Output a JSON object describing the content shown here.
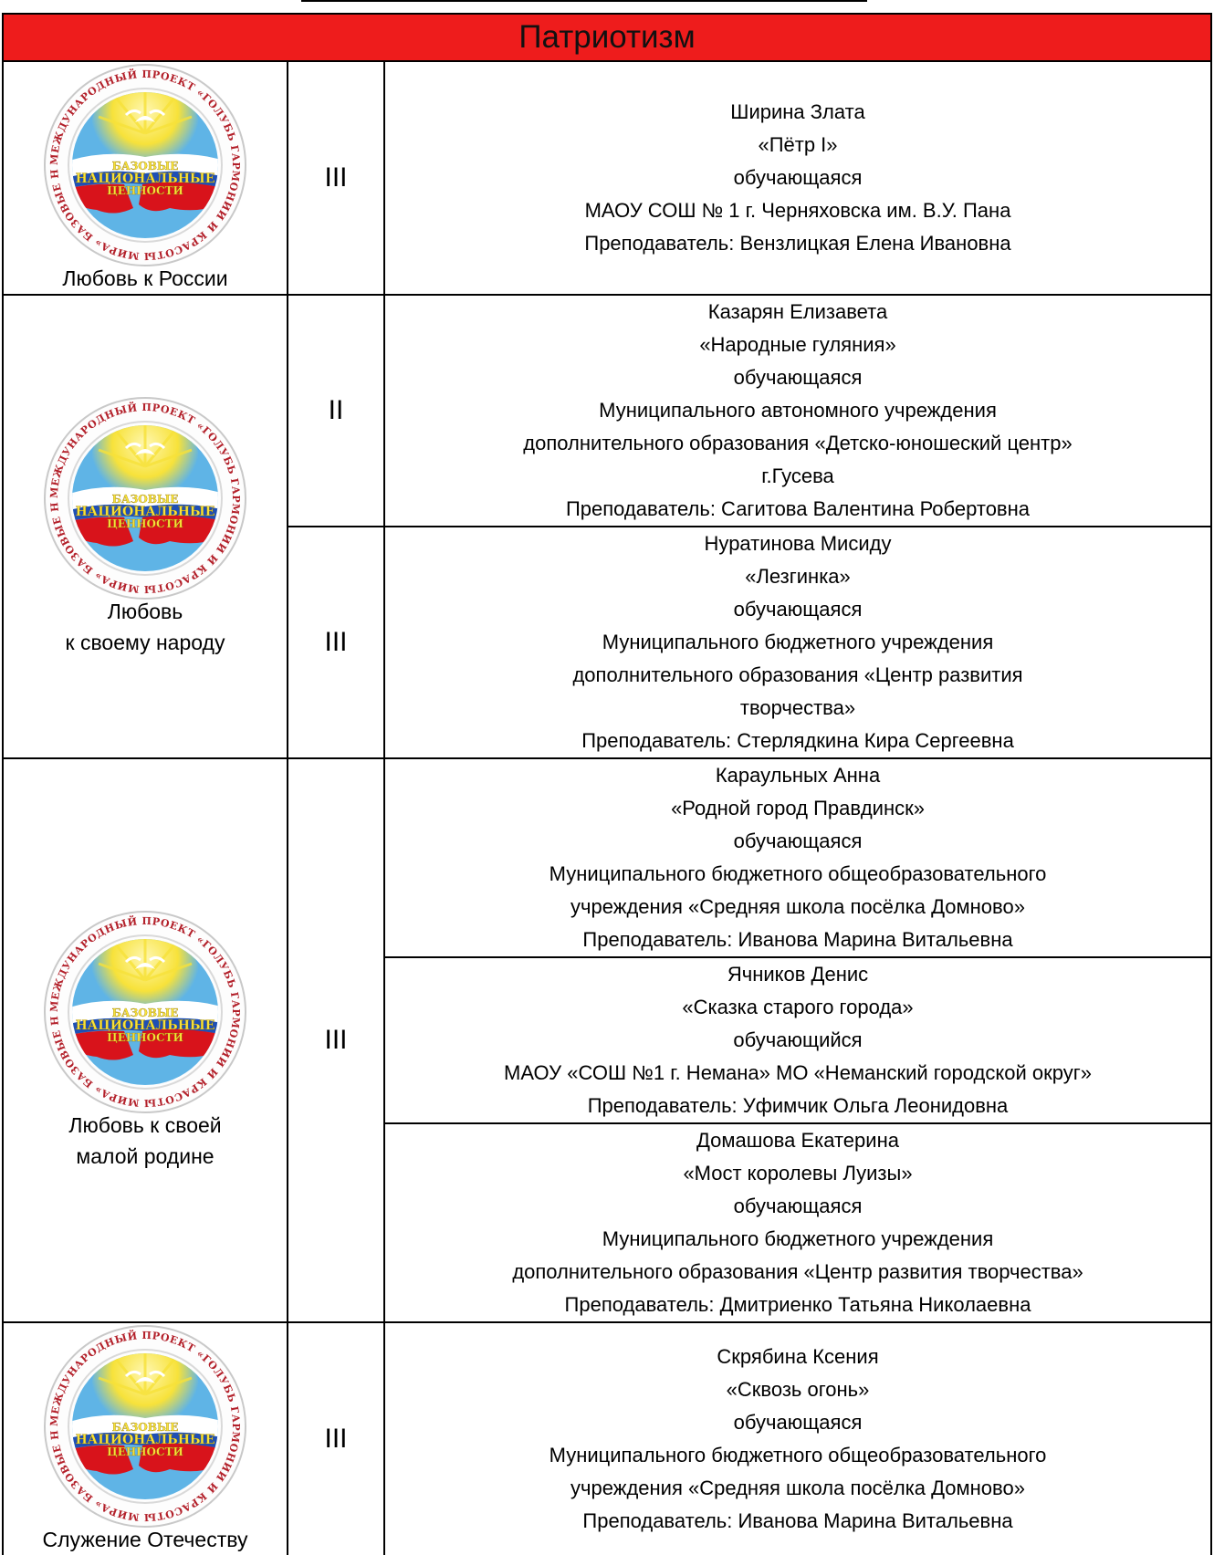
{
  "title": "Патриотизм",
  "emblem": {
    "ring_text": "МЕЖДУНАРОДНЫЙ ПРОЕКТ «ГОЛУБЬ ГАРМОНИИ И КРАСОТЫ МИРА» БАЗОВЫЕ НАЦИОНАЛЬНЫЕ ЦЕННОСТИ",
    "center_text": [
      "БАЗОВЫЕ",
      "НАЦИОНАЛЬНЫЕ",
      "ЦЕННОСТИ"
    ],
    "colors": {
      "sky": "#5fb4e6",
      "sun": "#f7e23a",
      "white": "#ffffff",
      "blue": "#1f4fb4",
      "red": "#d8131b",
      "text": "#b3202a"
    }
  },
  "accent_color": "#ee1c1c",
  "nominations": [
    {
      "label": "Любовь к России",
      "place": "III",
      "entries": [
        {
          "lines": [
            "Ширина Злата",
            "«Пётр I»",
            "обучающаяся",
            "МАОУ СОШ № 1 г. Черняховска им. В.У. Пана",
            "Преподаватель: Вензлицкая Елена Ивановна"
          ]
        }
      ]
    },
    {
      "label": "Любовь\nк своему народу",
      "places": [
        "II",
        "III"
      ],
      "entries": [
        {
          "lines": [
            "Казарян Елизавета",
            "«Народные гуляния»",
            "обучающаяся",
            "Муниципального автономного учреждения",
            "дополнительного образования «Детско-юношеский центр»",
            "г.Гусева",
            "Преподаватель: Сагитова Валентина Робертовна"
          ]
        },
        {
          "lines": [
            "Нуратинова Мисиду",
            "«Лезгинка»",
            "обучающаяся",
            "Муниципального бюджетного учреждения",
            "дополнительного образования «Центр развития",
            "творчества»",
            "Преподаватель: Стерлядкина Кира Сергеевна"
          ]
        }
      ]
    },
    {
      "label": "Любовь к своей\nмалой родине",
      "place": "III",
      "entries": [
        {
          "lines": [
            "Караульных Анна",
            "«Родной город Правдинск»",
            "обучающаяся",
            "Муниципального бюджетного общеобразовательного",
            "учреждения «Средняя школа посёлка Домново»",
            "Преподаватель: Иванова Марина Витальевна"
          ]
        },
        {
          "lines": [
            "Ячников Денис",
            "«Сказка старого города»",
            "обучающийся",
            "МАОУ «СОШ №1 г. Немана» МО «Неманский городской округ»",
            "Преподаватель: Уфимчик Ольга Леонидовна"
          ]
        },
        {
          "lines": [
            "Домашова Екатерина",
            "«Мост королевы Луизы»",
            "обучающаяся",
            "Муниципального бюджетного учреждения",
            "дополнительного образования «Центр развития творчества»",
            "Преподаватель: Дмитриенко Татьяна Николаевна"
          ]
        }
      ]
    },
    {
      "label": "Служение Отечеству",
      "place": "III",
      "entries": [
        {
          "lines": [
            "Скрябина Ксения",
            "«Сквозь огонь»",
            "обучающаяся",
            "Муниципального бюджетного общеобразовательного",
            "учреждения «Средняя школа посёлка Домново»",
            "Преподаватель: Иванова Марина Витальевна"
          ]
        }
      ]
    }
  ]
}
